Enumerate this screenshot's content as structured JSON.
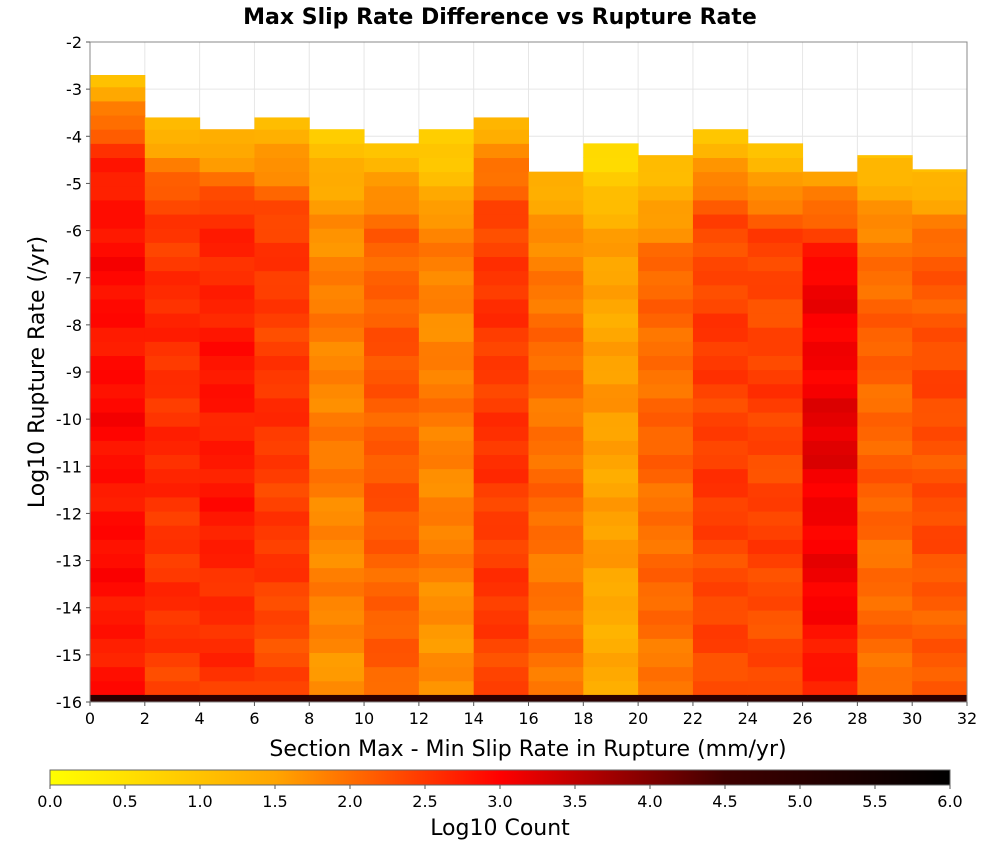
{
  "chart_data": {
    "type": "heatmap",
    "title": "Max Slip Rate Difference vs Rupture Rate",
    "xlabel": "Section Max - Min Slip Rate in Rupture (mm/yr)",
    "ylabel": "Log10 Rupture Rate (/yr)",
    "xlim": [
      0,
      32
    ],
    "ylim": [
      -16,
      -2
    ],
    "x_ticks": [
      "0",
      "2",
      "4",
      "6",
      "8",
      "10",
      "12",
      "14",
      "16",
      "18",
      "20",
      "22",
      "24",
      "26",
      "28",
      "30",
      "32"
    ],
    "y_ticks": [
      "-2",
      "-3",
      "-4",
      "-5",
      "-6",
      "-7",
      "-8",
      "-9",
      "-10",
      "-11",
      "-12",
      "-13",
      "-14",
      "-15",
      "-16"
    ],
    "grid": true,
    "x_bin_width": 2,
    "y_bin_height": 0.3,
    "colorbar": {
      "label": "Log10 Count",
      "range": [
        0,
        6
      ],
      "ticks": [
        "0.0",
        "0.5",
        "1.0",
        "1.5",
        "2.0",
        "2.5",
        "3.0",
        "3.5",
        "4.0",
        "4.5",
        "5.0",
        "5.5",
        "6.0"
      ],
      "colors": [
        "#ffff00",
        "#ffa500",
        "#ff0000",
        "#400000",
        "#000000"
      ],
      "position": "bottom"
    },
    "columns": [
      {
        "x": 1,
        "top": -2.7,
        "base": 2.8,
        "peak": 2.9,
        "taper": 0.7
      },
      {
        "x": 3,
        "top": -3.6,
        "base": 2.45,
        "peak": 2.6,
        "taper": 0.6
      },
      {
        "x": 5,
        "top": -3.85,
        "base": 2.45,
        "peak": 2.8,
        "taper": 0.5
      },
      {
        "x": 7,
        "top": -3.6,
        "base": 2.3,
        "peak": 2.5,
        "taper": 0.5
      },
      {
        "x": 9,
        "top": -3.85,
        "base": 1.7,
        "peak": 1.85,
        "taper": 0.35
      },
      {
        "x": 11,
        "top": -4.15,
        "base": 2.05,
        "peak": 2.2,
        "taper": 0.4
      },
      {
        "x": 13,
        "top": -3.85,
        "base": 1.65,
        "peak": 1.85,
        "taper": 0.4
      },
      {
        "x": 15,
        "top": -3.6,
        "base": 2.4,
        "peak": 2.5,
        "taper": 0.5
      },
      {
        "x": 17,
        "top": -4.75,
        "base": 1.9,
        "peak": 2.0,
        "taper": 0.3
      },
      {
        "x": 19,
        "top": -4.15,
        "base": 1.35,
        "peak": 1.55,
        "taper": 0.3
      },
      {
        "x": 21,
        "top": -4.4,
        "base": 1.95,
        "peak": 2.05,
        "taper": 0.4
      },
      {
        "x": 23,
        "top": -3.85,
        "base": 2.25,
        "peak": 2.45,
        "taper": 0.5
      },
      {
        "x": 25,
        "top": -4.15,
        "base": 2.3,
        "peak": 2.4,
        "taper": 0.5
      },
      {
        "x": 27,
        "top": -4.75,
        "base": 2.75,
        "peak": 3.15,
        "taper": 0.5
      },
      {
        "x": 29,
        "top": -4.4,
        "base": 1.95,
        "peak": 2.1,
        "taper": 0.4
      },
      {
        "x": 31,
        "top": -4.7,
        "base": 2.1,
        "peak": 2.3,
        "taper": 0.4
      }
    ],
    "gaps": [
      {
        "x": 17,
        "y_from": -5.3,
        "y_to": -5.0
      },
      {
        "x": 19,
        "y_from": -5.3,
        "y_to": -5.0
      },
      {
        "x": 29,
        "y_from": -5.3,
        "y_to": -5.0
      }
    ],
    "bottom_row": {
      "y_from": -16.0,
      "y_to": -15.85,
      "value": 5.0
    }
  }
}
